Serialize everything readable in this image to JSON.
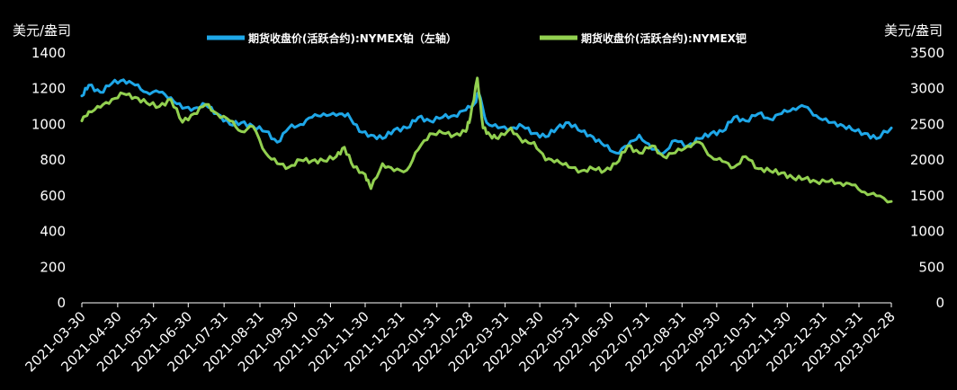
{
  "chart_data": {
    "type": "line",
    "y_left_unit": "美元/盎司",
    "y_right_unit": "美元/盎司",
    "ylim_left": [
      0,
      1400
    ],
    "ylim_right": [
      0,
      3500
    ],
    "y_left_ticks": [
      "0",
      "200",
      "400",
      "600",
      "800",
      "1000",
      "1200",
      "1400"
    ],
    "y_right_ticks": [
      "0",
      "500",
      "1000",
      "1500",
      "2000",
      "2500",
      "3000",
      "3500"
    ],
    "x_ticks": [
      "2021-03-30",
      "2021-04-30",
      "2021-05-31",
      "2021-06-30",
      "2021-07-31",
      "2021-08-31",
      "2021-09-30",
      "2021-10-31",
      "2021-11-30",
      "2021-12-31",
      "2022-01-31",
      "2022-02-28",
      "2022-03-31",
      "2022-04-30",
      "2022-05-31",
      "2022-06-30",
      "2022-07-31",
      "2022-08-31",
      "2022-09-30",
      "2022-10-31",
      "2022-11-30",
      "2022-12-31",
      "2023-01-31",
      "2023-02-28"
    ],
    "series": [
      {
        "name": "期货收盘价(活跃合约):NYMEX铂（左轴）",
        "axis": "left",
        "color": "#1ea7e8",
        "x": [
          "2021-03-30",
          "2021-04-05",
          "2021-04-15",
          "2021-04-25",
          "2021-05-05",
          "2021-05-15",
          "2021-05-25",
          "2021-06-05",
          "2021-06-15",
          "2021-06-25",
          "2021-07-05",
          "2021-07-15",
          "2021-07-25",
          "2021-08-05",
          "2021-08-15",
          "2021-08-25",
          "2021-09-05",
          "2021-09-15",
          "2021-09-25",
          "2021-10-05",
          "2021-10-15",
          "2021-10-25",
          "2021-11-05",
          "2021-11-15",
          "2021-11-25",
          "2021-12-05",
          "2021-12-15",
          "2021-12-25",
          "2022-01-05",
          "2022-01-15",
          "2022-01-25",
          "2022-02-05",
          "2022-02-15",
          "2022-02-25",
          "2022-03-05",
          "2022-03-08",
          "2022-03-15",
          "2022-03-25",
          "2022-04-05",
          "2022-04-15",
          "2022-04-25",
          "2022-05-05",
          "2022-05-15",
          "2022-05-25",
          "2022-06-05",
          "2022-06-15",
          "2022-06-25",
          "2022-07-05",
          "2022-07-15",
          "2022-07-25",
          "2022-08-05",
          "2022-08-15",
          "2022-08-25",
          "2022-09-05",
          "2022-09-15",
          "2022-09-25",
          "2022-10-05",
          "2022-10-15",
          "2022-10-25",
          "2022-11-05",
          "2022-11-15",
          "2022-11-25",
          "2022-12-05",
          "2022-12-15",
          "2022-12-25",
          "2023-01-05",
          "2023-01-15",
          "2023-01-25",
          "2023-02-05",
          "2023-02-15",
          "2023-02-28"
        ],
        "values": [
          1160,
          1220,
          1180,
          1230,
          1250,
          1220,
          1180,
          1180,
          1150,
          1090,
          1090,
          1110,
          1060,
          1000,
          1010,
          990,
          960,
          900,
          980,
          1000,
          1040,
          1060,
          1050,
          1060,
          960,
          940,
          920,
          970,
          980,
          1040,
          1020,
          1040,
          1050,
          1080,
          1120,
          1180,
          1010,
          980,
          980,
          990,
          950,
          930,
          980,
          1010,
          960,
          930,
          880,
          840,
          880,
          940,
          860,
          840,
          910,
          880,
          920,
          950,
          960,
          1040,
          1020,
          1060,
          1030,
          1060,
          1090,
          1100,
          1050,
          1010,
          1000,
          970,
          950,
          920,
          980
        ]
      },
      {
        "name": "期货收盘价(活跃合约):NYMEX钯",
        "axis": "right",
        "color": "#92d050",
        "x": [
          "2021-03-30",
          "2021-04-05",
          "2021-04-15",
          "2021-04-25",
          "2021-05-05",
          "2021-05-15",
          "2021-05-25",
          "2021-06-05",
          "2021-06-15",
          "2021-06-25",
          "2021-07-05",
          "2021-07-15",
          "2021-07-25",
          "2021-08-05",
          "2021-08-15",
          "2021-08-25",
          "2021-09-05",
          "2021-09-15",
          "2021-09-25",
          "2021-10-05",
          "2021-10-15",
          "2021-10-25",
          "2021-11-05",
          "2021-11-12",
          "2021-11-20",
          "2021-11-30",
          "2021-12-05",
          "2021-12-15",
          "2021-12-25",
          "2022-01-05",
          "2022-01-15",
          "2022-01-25",
          "2022-02-05",
          "2022-02-15",
          "2022-02-25",
          "2022-03-01",
          "2022-03-07",
          "2022-03-12",
          "2022-03-18",
          "2022-03-25",
          "2022-04-05",
          "2022-04-15",
          "2022-04-25",
          "2022-05-05",
          "2022-05-15",
          "2022-05-25",
          "2022-06-05",
          "2022-06-15",
          "2022-06-25",
          "2022-07-05",
          "2022-07-15",
          "2022-07-25",
          "2022-08-05",
          "2022-08-15",
          "2022-08-25",
          "2022-09-05",
          "2022-09-15",
          "2022-09-25",
          "2022-10-05",
          "2022-10-15",
          "2022-10-25",
          "2022-11-05",
          "2022-11-15",
          "2022-11-25",
          "2022-12-05",
          "2022-12-15",
          "2022-12-25",
          "2023-01-05",
          "2023-01-15",
          "2023-01-25",
          "2023-02-05",
          "2023-02-15",
          "2023-02-28"
        ],
        "values": [
          2550,
          2680,
          2740,
          2850,
          2930,
          2880,
          2800,
          2750,
          2850,
          2530,
          2650,
          2780,
          2650,
          2550,
          2400,
          2470,
          2100,
          1950,
          1900,
          2000,
          1990,
          1990,
          2050,
          2180,
          1900,
          1800,
          1600,
          1950,
          1850,
          1860,
          2150,
          2370,
          2380,
          2350,
          2400,
          2600,
          3150,
          2450,
          2350,
          2300,
          2450,
          2250,
          2250,
          2000,
          2000,
          1900,
          1850,
          1880,
          1850,
          1950,
          2200,
          2100,
          2200,
          2050,
          2100,
          2200,
          2250,
          2050,
          1980,
          1900,
          2050,
          1880,
          1850,
          1820,
          1750,
          1740,
          1700,
          1700,
          1680,
          1650,
          1550,
          1500,
          1420
        ]
      }
    ]
  }
}
